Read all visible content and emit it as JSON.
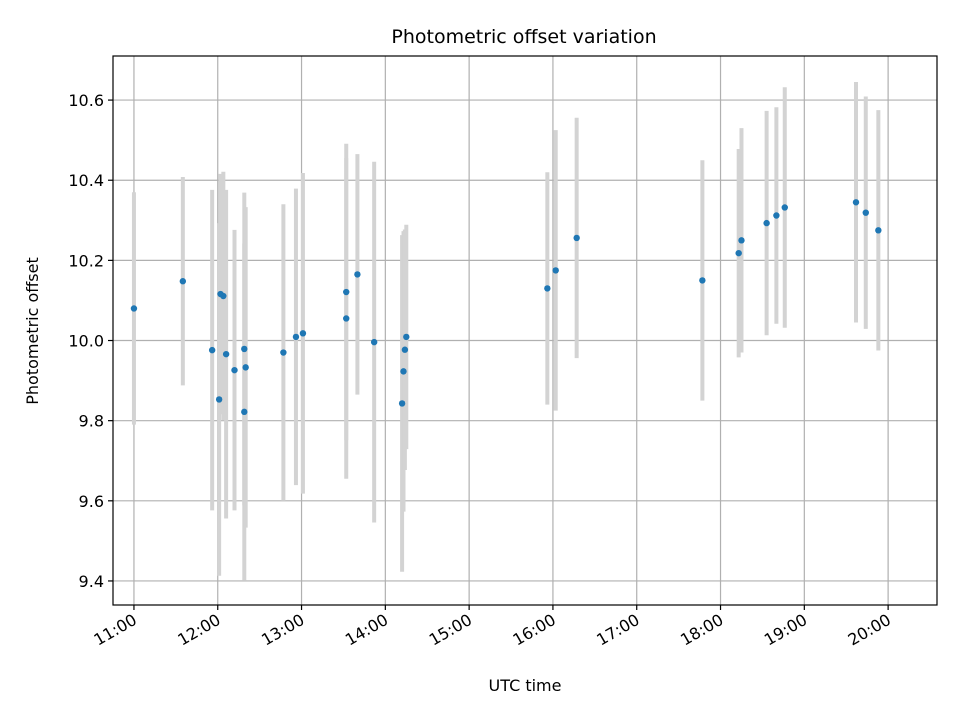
{
  "chart_data": {
    "type": "scatter",
    "title": "Photometric offset variation",
    "xlabel": "UTC time",
    "ylabel": "Photometric offset",
    "x_unit": "time of day (HH:MM, UTC)",
    "xlim": [
      "10:45",
      "20:35"
    ],
    "ylim": [
      9.34,
      10.71
    ],
    "grid": true,
    "x_ticks": [
      "11:00",
      "12:00",
      "13:00",
      "14:00",
      "15:00",
      "16:00",
      "17:00",
      "18:00",
      "19:00",
      "20:00"
    ],
    "y_ticks": [
      "9.4",
      "9.6",
      "9.8",
      "10.0",
      "10.2",
      "10.4",
      "10.6"
    ],
    "colors": {
      "point": "#1f77b4",
      "errorbar": "#d3d3d3",
      "grid": "#b0b0b0"
    },
    "points": [
      {
        "x": "11:00",
        "y": 10.08,
        "yerr": 0.29
      },
      {
        "x": "11:35",
        "y": 10.148,
        "yerr": 0.26
      },
      {
        "x": "11:56",
        "y": 9.976,
        "yerr": 0.4
      },
      {
        "x": "12:01",
        "y": 9.853,
        "yerr": 0.44
      },
      {
        "x": "12:02",
        "y": 10.116,
        "yerr": 0.3
      },
      {
        "x": "12:04",
        "y": 10.111,
        "yerr": 0.31
      },
      {
        "x": "12:06",
        "y": 9.966,
        "yerr": 0.41
      },
      {
        "x": "12:12",
        "y": 9.926,
        "yerr": 0.35
      },
      {
        "x": "12:19",
        "y": 9.979,
        "yerr": 0.39
      },
      {
        "x": "12:19",
        "y": 9.822,
        "yerr": 0.42
      },
      {
        "x": "12:20",
        "y": 9.933,
        "yerr": 0.4
      },
      {
        "x": "12:47",
        "y": 9.97,
        "yerr": 0.37
      },
      {
        "x": "12:56",
        "y": 10.009,
        "yerr": 0.37
      },
      {
        "x": "13:01",
        "y": 10.018,
        "yerr": 0.4
      },
      {
        "x": "13:32",
        "y": 10.055,
        "yerr": 0.4
      },
      {
        "x": "13:32",
        "y": 10.121,
        "yerr": 0.37
      },
      {
        "x": "13:40",
        "y": 10.165,
        "yerr": 0.3
      },
      {
        "x": "13:52",
        "y": 9.996,
        "yerr": 0.45
      },
      {
        "x": "14:12",
        "y": 9.843,
        "yerr": 0.42
      },
      {
        "x": "14:13",
        "y": 9.923,
        "yerr": 0.35
      },
      {
        "x": "14:14",
        "y": 9.977,
        "yerr": 0.3
      },
      {
        "x": "14:15",
        "y": 10.009,
        "yerr": 0.28
      },
      {
        "x": "15:56",
        "y": 10.13,
        "yerr": 0.29
      },
      {
        "x": "16:02",
        "y": 10.175,
        "yerr": 0.35
      },
      {
        "x": "16:17",
        "y": 10.256,
        "yerr": 0.3
      },
      {
        "x": "17:47",
        "y": 10.15,
        "yerr": 0.3
      },
      {
        "x": "18:13",
        "y": 10.218,
        "yerr": 0.26
      },
      {
        "x": "18:15",
        "y": 10.25,
        "yerr": 0.28
      },
      {
        "x": "18:33",
        "y": 10.293,
        "yerr": 0.28
      },
      {
        "x": "18:40",
        "y": 10.312,
        "yerr": 0.27
      },
      {
        "x": "18:46",
        "y": 10.332,
        "yerr": 0.3
      },
      {
        "x": "19:37",
        "y": 10.345,
        "yerr": 0.3
      },
      {
        "x": "19:44",
        "y": 10.319,
        "yerr": 0.29
      },
      {
        "x": "19:53",
        "y": 10.275,
        "yerr": 0.3
      }
    ]
  }
}
